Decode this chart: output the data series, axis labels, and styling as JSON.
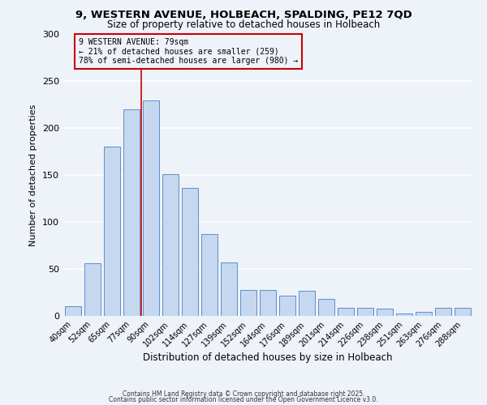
{
  "title": "9, WESTERN AVENUE, HOLBEACH, SPALDING, PE12 7QD",
  "subtitle": "Size of property relative to detached houses in Holbeach",
  "xlabel": "Distribution of detached houses by size in Holbeach",
  "ylabel": "Number of detached properties",
  "bar_labels": [
    "40sqm",
    "52sqm",
    "65sqm",
    "77sqm",
    "90sqm",
    "102sqm",
    "114sqm",
    "127sqm",
    "139sqm",
    "152sqm",
    "164sqm",
    "176sqm",
    "189sqm",
    "201sqm",
    "214sqm",
    "226sqm",
    "238sqm",
    "251sqm",
    "263sqm",
    "276sqm",
    "288sqm"
  ],
  "bar_heights": [
    10,
    56,
    180,
    220,
    230,
    151,
    136,
    87,
    57,
    28,
    28,
    22,
    27,
    18,
    9,
    9,
    8,
    3,
    4,
    9,
    9
  ],
  "bar_color": "#c5d8f0",
  "bar_edge_color": "#5b8fc9",
  "vline_label": "9 WESTERN AVENUE: 79sqm",
  "annotation_line1": "← 21% of detached houses are smaller (259)",
  "annotation_line2": "78% of semi-detached houses are larger (980) →",
  "box_color": "#cc0000",
  "ylim": [
    0,
    300
  ],
  "yticks": [
    0,
    50,
    100,
    150,
    200,
    250,
    300
  ],
  "background_color": "#eef2f9",
  "grid_color": "#ffffff",
  "footer1": "Contains HM Land Registry data © Crown copyright and database right 2025.",
  "footer2": "Contains public sector information licensed under the Open Government Licence v3.0."
}
